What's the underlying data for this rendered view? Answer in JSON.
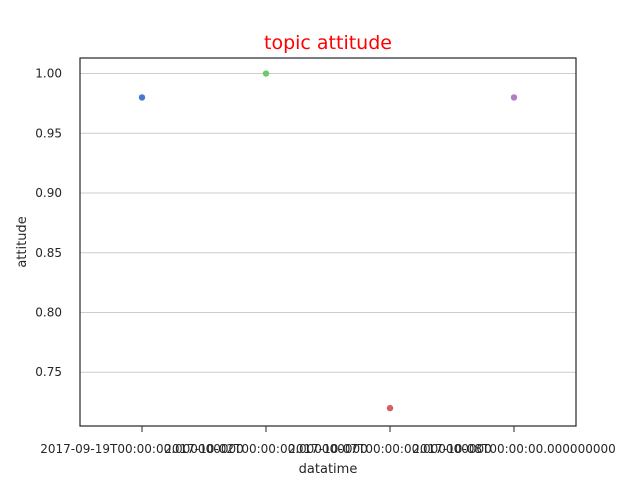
{
  "chart_data": {
    "type": "scatter",
    "title": "topic attitude",
    "title_color": "#ff0000",
    "xlabel": "datatime",
    "ylabel": "attitude",
    "grid": "horizontal",
    "categories": [
      "2017-09-19T00:00:00.000000000",
      "2017-10-02T00:00:00.000000000",
      "2017-10-07T00:00:00.000000000",
      "2017-10-08T00:00:00.000000000"
    ],
    "values": [
      0.98,
      1.0,
      0.72,
      0.98
    ],
    "point_colors": [
      "#4878cf",
      "#6acc65",
      "#d65f5f",
      "#b47cc7"
    ],
    "yticks": [
      "0.75",
      "0.80",
      "0.85",
      "0.90",
      "0.95",
      "1.00"
    ],
    "ylim": [
      0.705,
      1.013
    ]
  }
}
